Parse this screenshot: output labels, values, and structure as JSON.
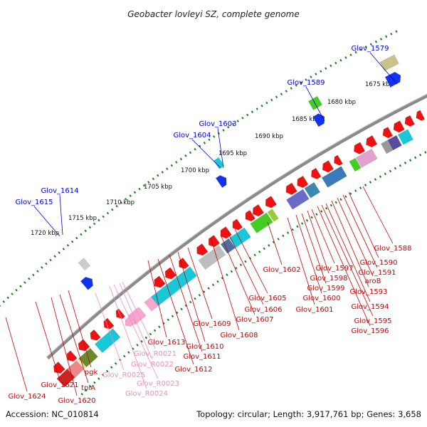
{
  "title": "Geobacter lovleyi SZ, complete genome",
  "footer": {
    "accession": "Accession: NC_010814",
    "summary": "Topology: circular; Length: 3,917,761 bp; Genes: 3,658"
  },
  "colors": {
    "ruler": "#1a7a1a",
    "backbone": "#8a8a8a",
    "blue_label": "#0000cc",
    "red_label": "#cc0000",
    "pink_label": "#f08cc0",
    "gene_red": "#ee1111",
    "gene_blue": "#1133ee",
    "gene_cyan": "#19c8d8",
    "gene_pink": "#f7a6cf",
    "gene_green": "#44cc22"
  },
  "scale_labels": [
    {
      "text": "1675 kbp"
    },
    {
      "text": "1680 kbp"
    },
    {
      "text": "1685 kbp"
    },
    {
      "text": "1690 kbp"
    },
    {
      "text": "1695 kbp"
    },
    {
      "text": "1700 kbp"
    },
    {
      "text": "1705 kbp"
    },
    {
      "text": "1710 kbp"
    },
    {
      "text": "1715 kbp"
    },
    {
      "text": "1720 kbp"
    }
  ],
  "blue_labels": [
    {
      "text": "Glov_1579"
    },
    {
      "text": "Glov_1589"
    },
    {
      "text": "Glov_1603"
    },
    {
      "text": "Glov_1604"
    },
    {
      "text": "Glov_1614"
    },
    {
      "text": "Glov_1615"
    }
  ],
  "red_labels": [
    {
      "text": "Glov_1588"
    },
    {
      "text": "Glov_1590"
    },
    {
      "text": "Glov_1591"
    },
    {
      "text": "aroB"
    },
    {
      "text": "Glov_1593"
    },
    {
      "text": "Glov_1594"
    },
    {
      "text": "Glov_1595"
    },
    {
      "text": "Glov_1596"
    },
    {
      "text": "Glov_1597"
    },
    {
      "text": "Glov_1598"
    },
    {
      "text": "Glov_1599"
    },
    {
      "text": "Glov_1600"
    },
    {
      "text": "Glov_1601"
    },
    {
      "text": "Glov_1602"
    },
    {
      "text": "Glov_1605"
    },
    {
      "text": "Glov_1606"
    },
    {
      "text": "Glov_1607"
    },
    {
      "text": "Glov_1608"
    },
    {
      "text": "Glov_1609"
    },
    {
      "text": "Glov_1610"
    },
    {
      "text": "Glov_1611"
    },
    {
      "text": "Glov_1612"
    },
    {
      "text": "Glov_1613"
    },
    {
      "text": "pgk"
    },
    {
      "text": "tpiA"
    },
    {
      "text": "Glov_1620"
    },
    {
      "text": "Glov_1621"
    },
    {
      "text": "Glov_1624"
    }
  ],
  "pink_labels": [
    {
      "text": "Glov_R0021"
    },
    {
      "text": "Glov_R0022"
    },
    {
      "text": "Glov_R0023"
    },
    {
      "text": "Glov_R0024"
    },
    {
      "text": "Glov_R0025"
    }
  ]
}
